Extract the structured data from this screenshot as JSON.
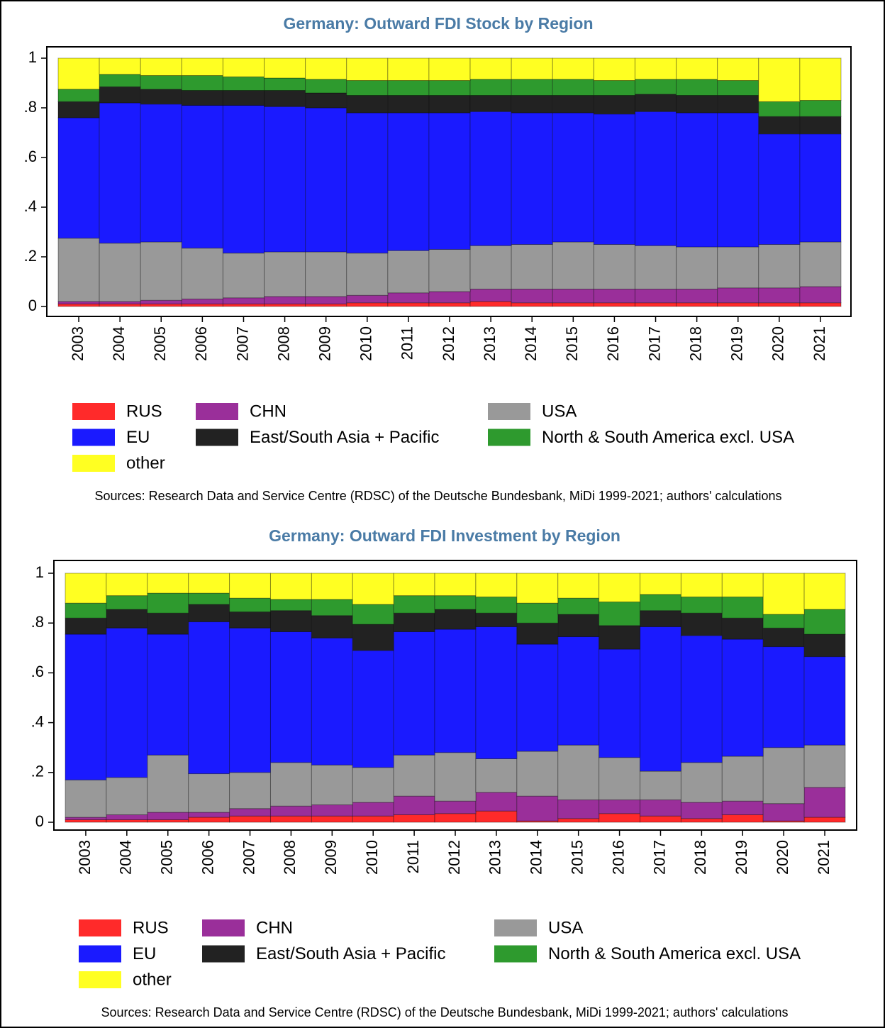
{
  "chart_data": [
    {
      "type": "bar",
      "stacked": true,
      "title": "Germany: Outward FDI Stock by Region",
      "categories": [
        "2003",
        "2004",
        "2005",
        "2006",
        "2007",
        "2008",
        "2009",
        "2010",
        "2011",
        "2012",
        "2013",
        "2014",
        "2015",
        "2016",
        "2017",
        "2018",
        "2019",
        "2020",
        "2021"
      ],
      "series": [
        {
          "name": "RUS",
          "color": "#ff2a2a",
          "values": [
            0.01,
            0.01,
            0.01,
            0.01,
            0.01,
            0.01,
            0.01,
            0.015,
            0.015,
            0.015,
            0.02,
            0.015,
            0.015,
            0.015,
            0.015,
            0.015,
            0.015,
            0.015,
            0.015
          ]
        },
        {
          "name": "CHN",
          "color": "#9a2f9a",
          "values": [
            0.01,
            0.01,
            0.015,
            0.02,
            0.025,
            0.03,
            0.03,
            0.03,
            0.04,
            0.045,
            0.05,
            0.055,
            0.055,
            0.055,
            0.055,
            0.055,
            0.06,
            0.06,
            0.065
          ]
        },
        {
          "name": "USA",
          "color": "#999999",
          "values": [
            0.255,
            0.235,
            0.235,
            0.205,
            0.18,
            0.18,
            0.18,
            0.17,
            0.17,
            0.17,
            0.175,
            0.18,
            0.19,
            0.18,
            0.175,
            0.17,
            0.165,
            0.175,
            0.18
          ]
        },
        {
          "name": "EU",
          "color": "#1a1aff",
          "values": [
            0.485,
            0.565,
            0.555,
            0.575,
            0.595,
            0.585,
            0.58,
            0.565,
            0.555,
            0.55,
            0.54,
            0.53,
            0.52,
            0.525,
            0.54,
            0.54,
            0.54,
            0.445,
            0.435
          ]
        },
        {
          "name": "East/South Asia + Pacific",
          "color": "#222222",
          "values": [
            0.065,
            0.065,
            0.06,
            0.06,
            0.06,
            0.065,
            0.06,
            0.07,
            0.07,
            0.07,
            0.065,
            0.07,
            0.07,
            0.075,
            0.07,
            0.07,
            0.07,
            0.07,
            0.07
          ]
        },
        {
          "name": "North & South America excl. USA",
          "color": "#2e9a2e",
          "values": [
            0.05,
            0.05,
            0.055,
            0.06,
            0.055,
            0.05,
            0.055,
            0.06,
            0.06,
            0.06,
            0.065,
            0.065,
            0.065,
            0.06,
            0.06,
            0.065,
            0.06,
            0.06,
            0.065
          ]
        },
        {
          "name": "other",
          "color": "#ffff22",
          "values": [
            0.125,
            0.065,
            0.07,
            0.07,
            0.075,
            0.08,
            0.085,
            0.09,
            0.09,
            0.09,
            0.085,
            0.085,
            0.085,
            0.09,
            0.085,
            0.085,
            0.09,
            0.175,
            0.17
          ]
        }
      ],
      "ylim": [
        0,
        1
      ],
      "yticks": [
        0,
        {
          "value": 0.2,
          "label": ".2"
        },
        {
          "value": 0.4,
          "label": ".4"
        },
        {
          "value": 0.6,
          "label": ".6"
        },
        {
          "value": 0.8,
          "label": ".8"
        },
        1
      ],
      "legend": "bottom",
      "source": "Sources: Research Data and Service Centre (RDSC) of the Deutsche Bundesbank, MiDi 1999-2021; authors' calculations"
    },
    {
      "type": "bar",
      "stacked": true,
      "title": "Germany: Outward FDI Investment by Region",
      "categories": [
        "2003",
        "2004",
        "2005",
        "2006",
        "2007",
        "2008",
        "2009",
        "2010",
        "2011",
        "2012",
        "2013",
        "2014",
        "2015",
        "2016",
        "2017",
        "2018",
        "2019",
        "2020",
        "2021"
      ],
      "series": [
        {
          "name": "RUS",
          "color": "#ff2a2a",
          "values": [
            0.01,
            0.01,
            0.01,
            0.02,
            0.025,
            0.025,
            0.025,
            0.025,
            0.03,
            0.035,
            0.045,
            0.005,
            0.015,
            0.035,
            0.025,
            0.015,
            0.03,
            0.005,
            0.02
          ]
        },
        {
          "name": "CHN",
          "color": "#9a2f9a",
          "values": [
            0.01,
            0.02,
            0.03,
            0.02,
            0.03,
            0.04,
            0.045,
            0.055,
            0.075,
            0.05,
            0.075,
            0.1,
            0.075,
            0.055,
            0.065,
            0.065,
            0.055,
            0.07,
            0.12
          ]
        },
        {
          "name": "USA",
          "color": "#999999",
          "values": [
            0.15,
            0.15,
            0.23,
            0.155,
            0.145,
            0.175,
            0.16,
            0.14,
            0.165,
            0.195,
            0.135,
            0.18,
            0.22,
            0.17,
            0.115,
            0.16,
            0.18,
            0.225,
            0.17
          ]
        },
        {
          "name": "EU",
          "color": "#1a1aff",
          "values": [
            0.585,
            0.6,
            0.485,
            0.61,
            0.58,
            0.525,
            0.51,
            0.47,
            0.495,
            0.495,
            0.53,
            0.43,
            0.435,
            0.435,
            0.58,
            0.51,
            0.47,
            0.405,
            0.355
          ]
        },
        {
          "name": "East/South Asia + Pacific",
          "color": "#222222",
          "values": [
            0.065,
            0.075,
            0.085,
            0.07,
            0.065,
            0.085,
            0.09,
            0.105,
            0.075,
            0.08,
            0.055,
            0.085,
            0.09,
            0.095,
            0.065,
            0.09,
            0.085,
            0.075,
            0.09
          ]
        },
        {
          "name": "North & South America excl. USA",
          "color": "#2e9a2e",
          "values": [
            0.06,
            0.055,
            0.08,
            0.045,
            0.055,
            0.045,
            0.065,
            0.08,
            0.07,
            0.055,
            0.065,
            0.08,
            0.065,
            0.095,
            0.065,
            0.065,
            0.085,
            0.055,
            0.1
          ]
        },
        {
          "name": "other",
          "color": "#ffff22",
          "values": [
            0.12,
            0.09,
            0.08,
            0.08,
            0.1,
            0.105,
            0.105,
            0.125,
            0.09,
            0.09,
            0.095,
            0.12,
            0.1,
            0.115,
            0.085,
            0.095,
            0.095,
            0.165,
            0.145
          ]
        }
      ],
      "ylim": [
        0,
        1
      ],
      "yticks": [
        0,
        {
          "value": 0.2,
          "label": ".2"
        },
        {
          "value": 0.4,
          "label": ".4"
        },
        {
          "value": 0.6,
          "label": ".6"
        },
        {
          "value": 0.8,
          "label": ".8"
        },
        1
      ],
      "legend": "bottom",
      "source": "Sources: Research Data and Service Centre (RDSC) of the Deutsche Bundesbank, MiDi 1999-2021; authors' calculations"
    }
  ]
}
